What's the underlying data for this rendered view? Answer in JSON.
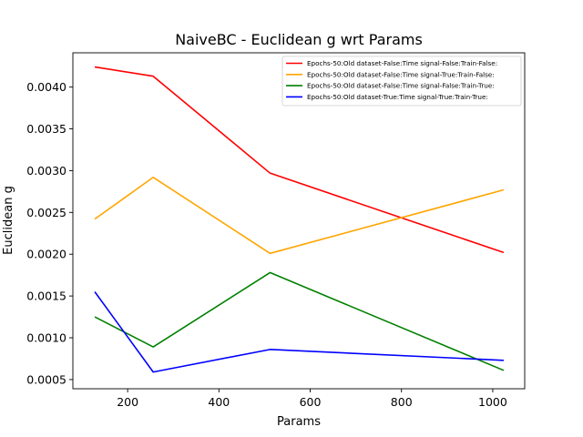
{
  "chart_data": {
    "type": "line",
    "title": "NaiveBC - Euclidean g wrt Params",
    "xlabel": "Params",
    "ylabel": "Euclidean g",
    "xlim": [
      80,
      1070
    ],
    "ylim": [
      0.00039,
      0.00441
    ],
    "xticks": [
      200,
      400,
      600,
      800,
      1000
    ],
    "xtick_labels": [
      "200",
      "400",
      "600",
      "800",
      "1000"
    ],
    "yticks": [
      0.0005,
      0.001,
      0.0015,
      0.002,
      0.0025,
      0.003,
      0.0035,
      0.004
    ],
    "ytick_labels": [
      "0.0005",
      "0.0010",
      "0.0015",
      "0.0020",
      "0.0025",
      "0.0030",
      "0.0035",
      "0.0040"
    ],
    "grid": false,
    "legend_position": "top-right",
    "x": [
      128,
      256,
      512,
      1024
    ],
    "series": [
      {
        "name": "Epochs-50:Old dataset-False:Time signal-False:Train-False:",
        "color": "#ff0000",
        "values": [
          0.00424,
          0.00413,
          0.00297,
          0.00202
        ]
      },
      {
        "name": "Epochs-50:Old dataset-False:Time signal-True:Train-False:",
        "color": "#ffa500",
        "values": [
          0.00242,
          0.00292,
          0.00201,
          0.00277
        ]
      },
      {
        "name": "Epochs-50:Old dataset-False:Time signal-False:Train-True:",
        "color": "#008000",
        "values": [
          0.00125,
          0.00089,
          0.00178,
          0.00061
        ]
      },
      {
        "name": "Epochs-50:Old dataset-True:Time signal-True:Train-True:",
        "color": "#0000ff",
        "values": [
          0.00155,
          0.00059,
          0.00086,
          0.00073
        ]
      }
    ]
  }
}
